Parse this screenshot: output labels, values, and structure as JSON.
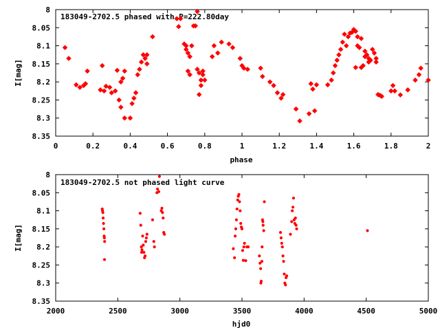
{
  "chart_data": [
    {
      "type": "scatter",
      "title": "183049-2702.5 phased with P=222.80day",
      "xlabel": "phase",
      "ylabel": "I[mag]",
      "xlim": [
        0,
        2
      ],
      "ylim": [
        8,
        8.35
      ],
      "y_inverted": true,
      "x_ticks": [
        "0",
        "0.2",
        "0.4",
        "0.6",
        "0.8",
        "1",
        "1.2",
        "1.4",
        "1.6",
        "1.8",
        "2"
      ],
      "y_ticks": [
        "8",
        "8.05",
        "8.1",
        "8.15",
        "8.2",
        "8.25",
        "8.3",
        "8.35"
      ],
      "grid": false,
      "color": "#ff0000",
      "series": [
        {
          "points": [
            [
              0.05,
              8.105
            ],
            [
              0.07,
              8.135
            ],
            [
              0.11,
              8.208
            ],
            [
              0.13,
              8.215
            ],
            [
              0.15,
              8.21
            ],
            [
              0.16,
              8.205
            ],
            [
              0.17,
              8.17
            ],
            [
              0.24,
              8.222
            ],
            [
              0.25,
              8.155
            ],
            [
              0.26,
              8.225
            ],
            [
              0.27,
              8.212
            ],
            [
              0.29,
              8.215
            ],
            [
              0.3,
              8.23
            ],
            [
              0.32,
              8.225
            ],
            [
              0.33,
              8.168
            ],
            [
              0.34,
              8.25
            ],
            [
              0.35,
              8.27
            ],
            [
              0.35,
              8.2
            ],
            [
              0.36,
              8.19
            ],
            [
              0.37,
              8.3
            ],
            [
              0.37,
              8.17
            ],
            [
              0.4,
              8.3
            ],
            [
              0.41,
              8.26
            ],
            [
              0.42,
              8.245
            ],
            [
              0.43,
              8.23
            ],
            [
              0.44,
              8.18
            ],
            [
              0.45,
              8.165
            ],
            [
              0.46,
              8.145
            ],
            [
              0.47,
              8.125
            ],
            [
              0.48,
              8.135
            ],
            [
              0.49,
              8.15
            ],
            [
              0.49,
              8.125
            ],
            [
              0.52,
              8.075
            ],
            [
              0.65,
              8.025
            ],
            [
              0.66,
              8.047
            ],
            [
              0.67,
              8.025
            ],
            [
              0.69,
              8.095
            ],
            [
              0.7,
              8.1
            ],
            [
              0.7,
              8.11
            ],
            [
              0.71,
              8.12
            ],
            [
              0.71,
              8.17
            ],
            [
              0.72,
              8.13
            ],
            [
              0.72,
              8.18
            ],
            [
              0.73,
              8.1
            ],
            [
              0.74,
              8.045
            ],
            [
              0.75,
              8.045
            ],
            [
              0.76,
              8.005
            ],
            [
              0.76,
              8.165
            ],
            [
              0.77,
              8.175
            ],
            [
              0.77,
              8.235
            ],
            [
              0.78,
              8.21
            ],
            [
              0.78,
              8.195
            ],
            [
              0.79,
              8.17
            ],
            [
              0.79,
              8.18
            ],
            [
              0.8,
              8.195
            ],
            [
              0.84,
              8.13
            ],
            [
              0.85,
              8.1
            ],
            [
              0.87,
              8.12
            ],
            [
              0.89,
              8.09
            ],
            [
              0.93,
              8.095
            ],
            [
              0.95,
              8.105
            ],
            [
              0.99,
              8.135
            ],
            [
              1.0,
              8.155
            ],
            [
              1.01,
              8.162
            ],
            [
              1.03,
              8.165
            ],
            [
              1.1,
              8.162
            ],
            [
              1.11,
              8.185
            ],
            [
              1.15,
              8.2
            ],
            [
              1.17,
              8.21
            ],
            [
              1.19,
              8.23
            ],
            [
              1.21,
              8.245
            ],
            [
              1.22,
              8.235
            ],
            [
              1.29,
              8.275
            ],
            [
              1.31,
              8.308
            ],
            [
              1.36,
              8.288
            ],
            [
              1.37,
              8.205
            ],
            [
              1.38,
              8.22
            ],
            [
              1.39,
              8.28
            ],
            [
              1.4,
              8.208
            ],
            [
              1.46,
              8.208
            ],
            [
              1.48,
              8.195
            ],
            [
              1.49,
              8.175
            ],
            [
              1.5,
              8.155
            ],
            [
              1.51,
              8.14
            ],
            [
              1.52,
              8.125
            ],
            [
              1.53,
              8.11
            ],
            [
              1.54,
              8.09
            ],
            [
              1.55,
              8.068
            ],
            [
              1.56,
              8.1
            ],
            [
              1.57,
              8.075
            ],
            [
              1.58,
              8.065
            ],
            [
              1.59,
              8.063
            ],
            [
              1.6,
              8.055
            ],
            [
              1.61,
              8.06
            ],
            [
              1.61,
              8.16
            ],
            [
              1.62,
              8.075
            ],
            [
              1.62,
              8.1
            ],
            [
              1.63,
              8.105
            ],
            [
              1.64,
              8.08
            ],
            [
              1.64,
              8.16
            ],
            [
              1.65,
              8.155
            ],
            [
              1.66,
              8.115
            ],
            [
              1.66,
              8.13
            ],
            [
              1.67,
              8.125
            ],
            [
              1.68,
              8.135
            ],
            [
              1.68,
              8.145
            ],
            [
              1.69,
              8.14
            ],
            [
              1.7,
              8.11
            ],
            [
              1.71,
              8.12
            ],
            [
              1.72,
              8.135
            ],
            [
              1.72,
              8.145
            ],
            [
              1.73,
              8.235
            ],
            [
              1.74,
              8.237
            ],
            [
              1.75,
              8.24
            ],
            [
              1.8,
              8.225
            ],
            [
              1.81,
              8.21
            ],
            [
              1.82,
              8.225
            ],
            [
              1.85,
              8.236
            ],
            [
              1.89,
              8.222
            ],
            [
              1.93,
              8.195
            ],
            [
              1.95,
              8.18
            ],
            [
              1.96,
              8.162
            ],
            [
              2.0,
              8.195
            ]
          ]
        }
      ]
    },
    {
      "type": "scatter",
      "title": "183049-2702.5 not phased light curve",
      "xlabel": "hjd0",
      "ylabel": "I[mag]",
      "xlim": [
        2000,
        5000
      ],
      "ylim": [
        8,
        8.35
      ],
      "y_inverted": true,
      "x_ticks": [
        "2000",
        "2500",
        "3000",
        "3500",
        "4000",
        "4500",
        "5000"
      ],
      "y_ticks": [
        "8",
        "8.05",
        "8.1",
        "8.15",
        "8.2",
        "8.25",
        "8.3",
        "8.35"
      ],
      "grid": false,
      "color": "#ff0000",
      "series": [
        {
          "points": [
            [
              2375,
              8.095
            ],
            [
              2377,
              8.1
            ],
            [
              2380,
              8.105
            ],
            [
              2382,
              8.12
            ],
            [
              2385,
              8.135
            ],
            [
              2388,
              8.15
            ],
            [
              2390,
              8.17
            ],
            [
              2392,
              8.175
            ],
            [
              2393,
              8.235
            ],
            [
              2394,
              8.185
            ],
            [
              2680,
              8.107
            ],
            [
              2685,
              8.14
            ],
            [
              2690,
              8.2
            ],
            [
              2692,
              8.215
            ],
            [
              2695,
              8.208
            ],
            [
              2700,
              8.17
            ],
            [
              2705,
              8.195
            ],
            [
              2710,
              8.215
            ],
            [
              2715,
              8.23
            ],
            [
              2720,
              8.225
            ],
            [
              2725,
              8.185
            ],
            [
              2730,
              8.175
            ],
            [
              2735,
              8.165
            ],
            [
              2780,
              8.125
            ],
            [
              2790,
              8.185
            ],
            [
              2795,
              8.2
            ],
            [
              2815,
              8.05
            ],
            [
              2820,
              8.04
            ],
            [
              2830,
              8.047
            ],
            [
              2835,
              8.005
            ],
            [
              2850,
              8.1
            ],
            [
              2855,
              8.093
            ],
            [
              2860,
              8.105
            ],
            [
              2865,
              8.12
            ],
            [
              2870,
              8.16
            ],
            [
              2875,
              8.165
            ],
            [
              3430,
              8.205
            ],
            [
              3440,
              8.23
            ],
            [
              3445,
              8.17
            ],
            [
              3450,
              8.15
            ],
            [
              3455,
              8.125
            ],
            [
              3460,
              8.095
            ],
            [
              3465,
              8.07
            ],
            [
              3470,
              8.06
            ],
            [
              3475,
              8.055
            ],
            [
              3480,
              8.075
            ],
            [
              3485,
              8.1
            ],
            [
              3490,
              8.135
            ],
            [
              3495,
              8.145
            ],
            [
              3500,
              8.15
            ],
            [
              3505,
              8.21
            ],
            [
              3510,
              8.237
            ],
            [
              3515,
              8.2
            ],
            [
              3520,
              8.19
            ],
            [
              3530,
              8.238
            ],
            [
              3540,
              8.2
            ],
            [
              3550,
              8.2
            ],
            [
              3640,
              8.225
            ],
            [
              3645,
              8.245
            ],
            [
              3650,
              8.26
            ],
            [
              3652,
              8.3
            ],
            [
              3655,
              8.295
            ],
            [
              3660,
              8.24
            ],
            [
              3662,
              8.2
            ],
            [
              3665,
              8.125
            ],
            [
              3668,
              8.13
            ],
            [
              3670,
              8.14
            ],
            [
              3675,
              8.155
            ],
            [
              3680,
              8.075
            ],
            [
              3810,
              8.16
            ],
            [
              3815,
              8.175
            ],
            [
              3820,
              8.19
            ],
            [
              3825,
              8.2
            ],
            [
              3830,
              8.225
            ],
            [
              3835,
              8.24
            ],
            [
              3840,
              8.275
            ],
            [
              3845,
              8.3
            ],
            [
              3850,
              8.305
            ],
            [
              3855,
              8.285
            ],
            [
              3860,
              8.28
            ],
            [
              3890,
              8.165
            ],
            [
              3900,
              8.13
            ],
            [
              3905,
              8.1
            ],
            [
              3910,
              8.09
            ],
            [
              3915,
              8.065
            ],
            [
              3920,
              8.125
            ],
            [
              3925,
              8.135
            ],
            [
              3930,
              8.12
            ],
            [
              3935,
              8.14
            ],
            [
              3940,
              8.15
            ],
            [
              4510,
              8.155
            ]
          ]
        }
      ]
    }
  ]
}
